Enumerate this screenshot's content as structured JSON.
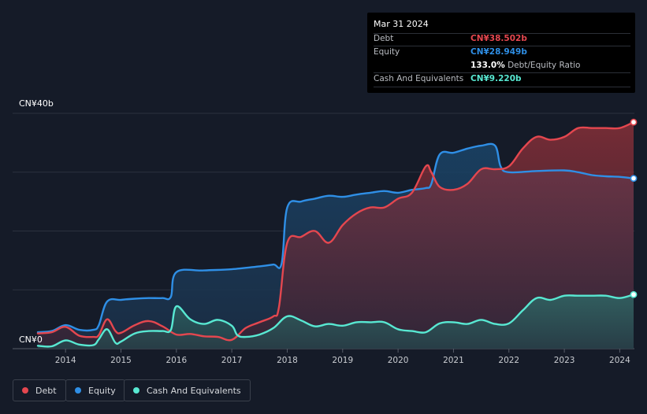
{
  "tooltip": {
    "date": "Mar 31 2024",
    "rows": [
      {
        "label": "Debt",
        "value": "CN¥38.502b",
        "color": "#e4474f"
      },
      {
        "label": "Equity",
        "value": "CN¥28.949b",
        "color": "#2f8fe6"
      },
      {
        "label": "",
        "value": "133.0%",
        "suffix": " Debt/Equity Ratio",
        "color": "#ffffff"
      },
      {
        "label": "Cash And Equivalents",
        "value": "CN¥9.220b",
        "color": "#58e8d2"
      }
    ]
  },
  "legend": [
    {
      "label": "Debt",
      "color": "#e4474f"
    },
    {
      "label": "Equity",
      "color": "#2f8fe6"
    },
    {
      "label": "Cash And Equivalents",
      "color": "#58e8d2"
    }
  ],
  "chart_data": {
    "type": "area",
    "ylabel_top": "CN¥40b",
    "ylabel_bottom": "CN¥0",
    "ylim": [
      0,
      40
    ],
    "xlim": [
      2013.5,
      2024.25
    ],
    "x_ticks": [
      "2014",
      "2015",
      "2016",
      "2017",
      "2018",
      "2019",
      "2020",
      "2021",
      "2022",
      "2023",
      "2024"
    ],
    "grid": true,
    "legend_position": "bottom-left",
    "series": [
      {
        "name": "Debt",
        "color": "#e4474f",
        "x": [
          2013.5,
          2013.75,
          2014.0,
          2014.25,
          2014.5,
          2014.6,
          2014.75,
          2014.9,
          2015.0,
          2015.25,
          2015.5,
          2015.75,
          2016.0,
          2016.25,
          2016.5,
          2016.75,
          2017.0,
          2017.25,
          2017.5,
          2017.75,
          2017.85,
          2018.0,
          2018.25,
          2018.5,
          2018.75,
          2019.0,
          2019.25,
          2019.5,
          2019.75,
          2020.0,
          2020.25,
          2020.5,
          2020.6,
          2020.75,
          2021.0,
          2021.25,
          2021.5,
          2021.75,
          2022.0,
          2022.25,
          2022.5,
          2022.75,
          2023.0,
          2023.25,
          2023.5,
          2023.75,
          2024.0,
          2024.25
        ],
        "values": [
          2.6,
          2.8,
          3.7,
          2.2,
          2.0,
          2.3,
          5.0,
          3.0,
          2.7,
          4.0,
          4.7,
          3.8,
          2.4,
          2.5,
          2.1,
          2.0,
          1.5,
          3.5,
          4.5,
          5.5,
          7.0,
          18.0,
          19.0,
          20.0,
          18.0,
          21.0,
          23.0,
          24.0,
          24.0,
          25.5,
          26.5,
          31.0,
          30.0,
          27.5,
          27.0,
          28.0,
          30.5,
          30.5,
          31.0,
          34.0,
          36.0,
          35.5,
          36.0,
          37.5,
          37.5,
          37.5,
          37.5,
          38.5
        ]
      },
      {
        "name": "Equity",
        "color": "#2f8fe6",
        "x": [
          2013.5,
          2013.75,
          2014.0,
          2014.25,
          2014.5,
          2014.6,
          2014.75,
          2015.0,
          2015.25,
          2015.5,
          2015.75,
          2015.9,
          2016.0,
          2016.5,
          2017.0,
          2017.5,
          2017.75,
          2017.9,
          2018.0,
          2018.25,
          2018.5,
          2018.75,
          2019.0,
          2019.25,
          2019.5,
          2019.75,
          2020.0,
          2020.25,
          2020.5,
          2020.6,
          2020.75,
          2021.0,
          2021.25,
          2021.5,
          2021.75,
          2021.85,
          2022.0,
          2022.5,
          2023.0,
          2023.25,
          2023.5,
          2023.75,
          2024.0,
          2024.25
        ],
        "values": [
          2.8,
          3.0,
          4.0,
          3.2,
          3.2,
          4.0,
          8.0,
          8.3,
          8.5,
          8.6,
          8.6,
          8.8,
          13.0,
          13.3,
          13.5,
          14.0,
          14.3,
          14.5,
          24.0,
          25.0,
          25.5,
          26.0,
          25.8,
          26.2,
          26.5,
          26.8,
          26.5,
          27.0,
          27.3,
          28.0,
          33.0,
          33.3,
          34.0,
          34.5,
          34.5,
          31.0,
          30.0,
          30.2,
          30.3,
          30.0,
          29.5,
          29.3,
          29.2,
          28.95
        ]
      },
      {
        "name": "Cash And Equivalents",
        "color": "#58e8d2",
        "x": [
          2013.5,
          2013.75,
          2014.0,
          2014.25,
          2014.5,
          2014.6,
          2014.75,
          2014.9,
          2015.0,
          2015.25,
          2015.5,
          2015.75,
          2015.9,
          2016.0,
          2016.25,
          2016.5,
          2016.75,
          2017.0,
          2017.1,
          2017.25,
          2017.5,
          2017.75,
          2018.0,
          2018.25,
          2018.5,
          2018.75,
          2019.0,
          2019.25,
          2019.5,
          2019.75,
          2020.0,
          2020.25,
          2020.5,
          2020.75,
          2021.0,
          2021.25,
          2021.5,
          2021.75,
          2022.0,
          2022.25,
          2022.5,
          2022.75,
          2023.0,
          2023.25,
          2023.5,
          2023.75,
          2024.0,
          2024.25
        ],
        "values": [
          0.5,
          0.4,
          1.4,
          0.7,
          0.6,
          1.6,
          3.3,
          1.0,
          1.2,
          2.6,
          3.0,
          3.0,
          3.2,
          7.2,
          5.0,
          4.2,
          4.9,
          3.9,
          2.3,
          2.0,
          2.4,
          3.5,
          5.5,
          4.8,
          3.8,
          4.2,
          3.9,
          4.5,
          4.5,
          4.5,
          3.3,
          3.0,
          2.8,
          4.3,
          4.5,
          4.2,
          4.9,
          4.2,
          4.3,
          6.5,
          8.6,
          8.3,
          9.0,
          9.0,
          9.0,
          9.0,
          8.6,
          9.2
        ]
      }
    ]
  }
}
